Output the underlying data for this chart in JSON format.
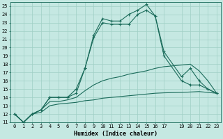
{
  "xlabel": "Humidex (Indice chaleur)",
  "bg_color": "#c5e8e2",
  "line_color": "#1a6b5a",
  "grid_color": "#9fcfc5",
  "xlim": [
    -0.5,
    23.5
  ],
  "ylim": [
    11,
    25.5
  ],
  "yticks": [
    11,
    12,
    13,
    14,
    15,
    16,
    17,
    18,
    19,
    20,
    21,
    22,
    23,
    24,
    25
  ],
  "xtick_vals": [
    0,
    1,
    2,
    3,
    4,
    5,
    6,
    7,
    8,
    9,
    10,
    11,
    12,
    13,
    14,
    15,
    16,
    17,
    19,
    20,
    21,
    22,
    23
  ],
  "xtick_labels": [
    "0",
    "1",
    "2",
    "3",
    "4",
    "5",
    "6",
    "7",
    "8",
    "9",
    "10",
    "11",
    "12",
    "13",
    "14",
    "15",
    "16",
    "17",
    "19",
    "20",
    "21",
    "22",
    "23"
  ],
  "line1_x": [
    0,
    1,
    2,
    3,
    4,
    5,
    6,
    7,
    8,
    9,
    10,
    11,
    12,
    13,
    14,
    15,
    16,
    17,
    19,
    20,
    21,
    22,
    23
  ],
  "line1_y": [
    12,
    11,
    12,
    12.2,
    13.0,
    13.2,
    13.3,
    13.4,
    13.6,
    13.7,
    13.9,
    14.0,
    14.1,
    14.2,
    14.3,
    14.4,
    14.5,
    14.55,
    14.6,
    14.65,
    14.7,
    14.6,
    14.5
  ],
  "line2_x": [
    0,
    1,
    2,
    3,
    4,
    5,
    6,
    7,
    8,
    9,
    10,
    11,
    12,
    13,
    14,
    15,
    16,
    17,
    19,
    20,
    21,
    22,
    23
  ],
  "line2_y": [
    12,
    11,
    12,
    12.5,
    13.5,
    13.5,
    13.7,
    14.0,
    14.8,
    15.5,
    16.0,
    16.3,
    16.5,
    16.8,
    17.0,
    17.2,
    17.5,
    17.7,
    17.9,
    18.0,
    17.2,
    16.0,
    14.5
  ],
  "line3_x": [
    0,
    1,
    2,
    3,
    4,
    5,
    6,
    7,
    8,
    9,
    10,
    11,
    12,
    13,
    14,
    15,
    16,
    17,
    19,
    20,
    21,
    22,
    23
  ],
  "line3_y": [
    12,
    11,
    12,
    12.5,
    14.0,
    14.0,
    14.0,
    14.5,
    17.5,
    21.2,
    23.0,
    22.8,
    22.8,
    22.8,
    24.0,
    24.5,
    23.8,
    19.0,
    16.0,
    15.5,
    15.5,
    15.0,
    14.5
  ],
  "line4_x": [
    0,
    1,
    2,
    3,
    4,
    5,
    6,
    7,
    8,
    9,
    10,
    11,
    12,
    13,
    14,
    15,
    16,
    17,
    19,
    20,
    21,
    22,
    23
  ],
  "line4_y": [
    12,
    11,
    12,
    12.5,
    14.0,
    14.0,
    14.0,
    15.0,
    17.5,
    21.5,
    23.5,
    23.2,
    23.2,
    24.0,
    24.5,
    25.2,
    23.8,
    19.5,
    16.5,
    17.5,
    16.0,
    15.0,
    14.5
  ]
}
